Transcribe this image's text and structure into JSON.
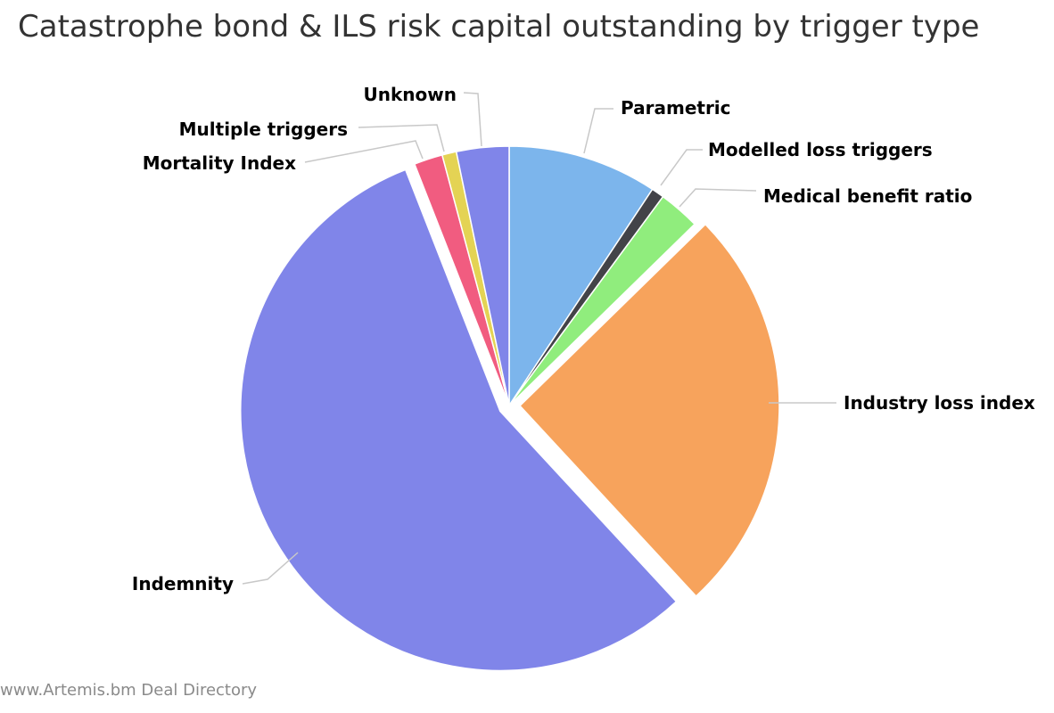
{
  "chart_data": {
    "type": "pie",
    "title": "Catastrophe bond & ILS risk capital outstanding by trigger type",
    "credit": "www.Artemis.bm Deal Directory",
    "unit": "share of outstanding risk capital (%)",
    "slices": [
      {
        "name": "Parametric",
        "value": 9.4,
        "color": "#7cb5ec",
        "exploded": false
      },
      {
        "name": "Modelled loss triggers",
        "value": 0.8,
        "color": "#434348",
        "exploded": false
      },
      {
        "name": "Medical benefit ratio",
        "value": 2.6,
        "color": "#90ed7d",
        "exploded": false
      },
      {
        "name": "Industry loss index",
        "value": 25.7,
        "color": "#f7a35c",
        "exploded": true
      },
      {
        "name": "Indemnity",
        "value": 56.5,
        "color": "#8085e9",
        "exploded": true
      },
      {
        "name": "Mortality Index",
        "value": 1.8,
        "color": "#f15c80",
        "exploded": false
      },
      {
        "name": "Multiple triggers",
        "value": 0.9,
        "color": "#e4d354",
        "exploded": false
      },
      {
        "name": "Unknown",
        "value": 3.3,
        "color": "#8085e9",
        "exploded": false
      }
    ]
  }
}
